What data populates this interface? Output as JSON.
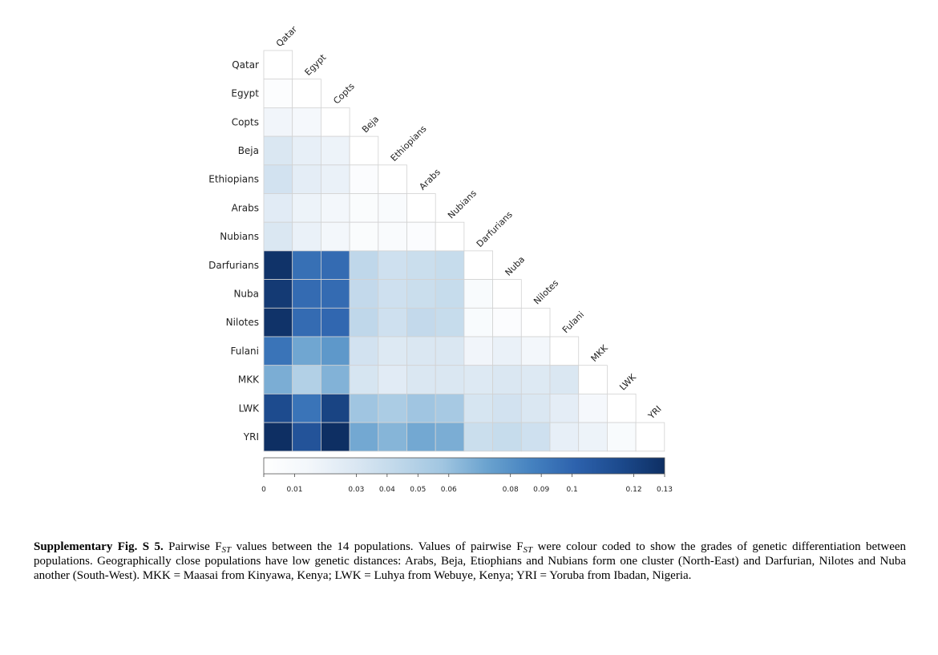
{
  "chart_data": {
    "type": "heatmap",
    "title": "",
    "populations": [
      "Qatar",
      "Egypt",
      "Copts",
      "Beja",
      "Ethiopians",
      "Arabs",
      "Nubians",
      "Darfurians",
      "Nuba",
      "Nilotes",
      "Fulani",
      "MKK",
      "LWK",
      "YRI"
    ],
    "fst_lower_triangle": [
      [
        0
      ],
      [
        0.004,
        0
      ],
      [
        0.016,
        0.012,
        0
      ],
      [
        0.03,
        0.022,
        0.018,
        0
      ],
      [
        0.034,
        0.024,
        0.02,
        0.005,
        0
      ],
      [
        0.026,
        0.018,
        0.014,
        0.006,
        0.007,
        0
      ],
      [
        0.03,
        0.02,
        0.014,
        0.006,
        0.007,
        0.005,
        0
      ],
      [
        0.128,
        0.095,
        0.097,
        0.044,
        0.036,
        0.038,
        0.04,
        0
      ],
      [
        0.124,
        0.097,
        0.097,
        0.042,
        0.036,
        0.038,
        0.04,
        0.008,
        0
      ],
      [
        0.128,
        0.097,
        0.099,
        0.044,
        0.036,
        0.042,
        0.04,
        0.008,
        0.005,
        0
      ],
      [
        0.093,
        0.071,
        0.077,
        0.034,
        0.028,
        0.03,
        0.03,
        0.016,
        0.02,
        0.014,
        0
      ],
      [
        0.068,
        0.05,
        0.066,
        0.032,
        0.026,
        0.03,
        0.03,
        0.028,
        0.03,
        0.028,
        0.03,
        0
      ],
      [
        0.115,
        0.093,
        0.119,
        0.058,
        0.053,
        0.058,
        0.055,
        0.032,
        0.034,
        0.03,
        0.024,
        0.012,
        0
      ],
      [
        0.133,
        0.11,
        0.133,
        0.07,
        0.065,
        0.07,
        0.068,
        0.038,
        0.04,
        0.036,
        0.022,
        0.018,
        0.008,
        0
      ]
    ],
    "colorbar": {
      "min": 0,
      "max": 0.13,
      "ticks": [
        0,
        0.01,
        0.03,
        0.04,
        0.05,
        0.06,
        0.08,
        0.09,
        0.1,
        0.12,
        0.13
      ],
      "tick_labels": [
        "0",
        "0.01",
        "0.03",
        "0.04",
        "0.05",
        "0.06",
        "0.08",
        "0.09",
        "0.1",
        "0.12",
        "0.13"
      ],
      "colors": [
        "#ffffff",
        "#f3f7fb",
        "#dce8f3",
        "#c0d8ea",
        "#a1c6e1",
        "#6ba3cf",
        "#4582c0",
        "#2d62ad",
        "#1c4a8d",
        "#0e2f63"
      ]
    }
  },
  "caption": {
    "label": "Supplementary Fig. S 5.",
    "p1": " Pairwise F",
    "sub1": "ST",
    "p2": " values between the 14 populations. Values of pairwise F",
    "sub2": "ST",
    "p3": " were colour coded to show the grades of genetic differentiation between populations. Geographically close populations have low genetic distances: Arabs, Beja, Etiophians and Nubians form one cluster (North-East) and Darfurian, Nilotes and Nuba another (South-West). MKK = Maasai from Kinyawa, Kenya; LWK = Luhya from Webuye, Kenya; YRI = Yoruba from Ibadan, Nigeria."
  }
}
